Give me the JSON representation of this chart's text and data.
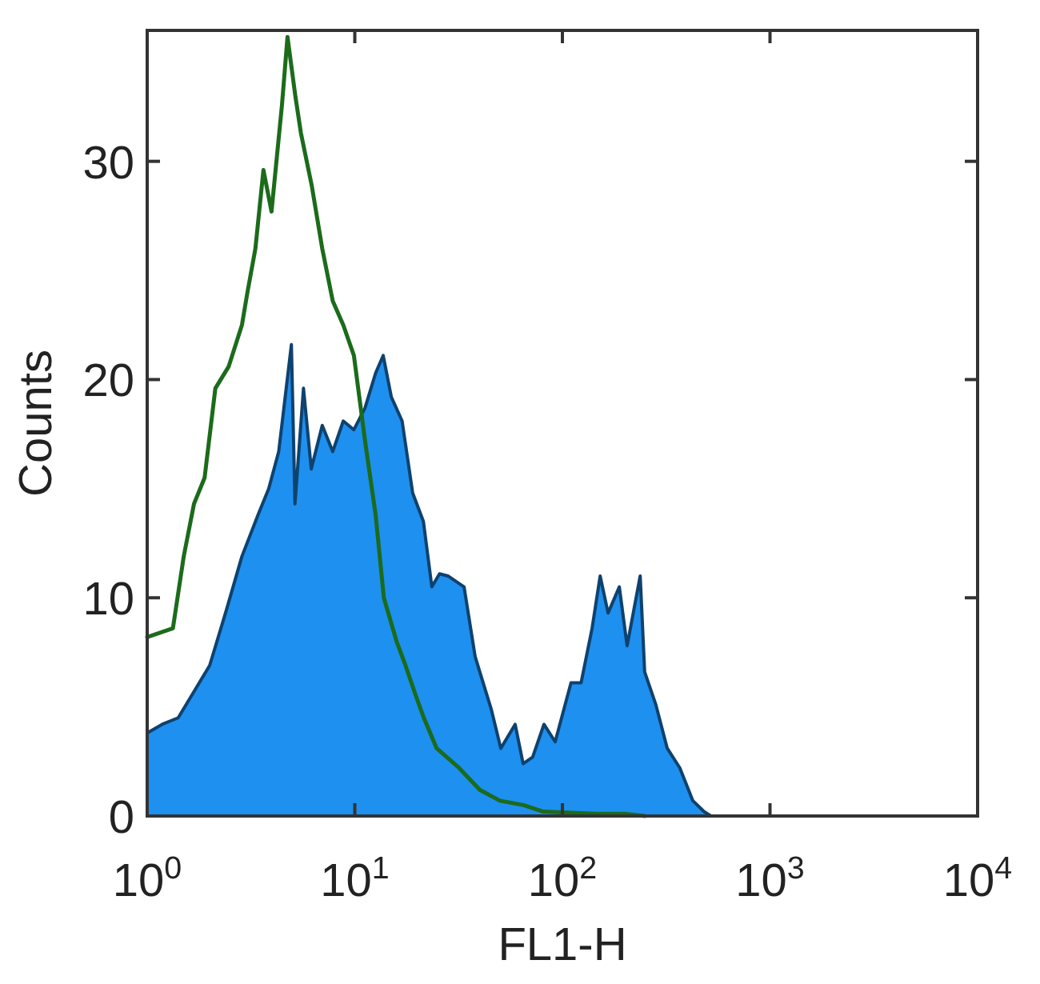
{
  "chart_data": {
    "type": "area",
    "xlabel": "FL1-H",
    "ylabel": "Counts",
    "log": "x",
    "xlim": [
      1,
      10000
    ],
    "xticks": [
      {
        "value": 1,
        "label": "10$^{0}$"
      },
      {
        "value": 10,
        "label": "10$^{1}$"
      },
      {
        "value": 100,
        "label": "10$^{2}$"
      },
      {
        "value": 1000,
        "label": "10$^{3}$"
      },
      {
        "value": 10000,
        "label": "10$^{4}$"
      }
    ],
    "ylim": [
      0,
      36
    ],
    "yticks": [
      0,
      10,
      20,
      30
    ],
    "series": [
      {
        "color": "#1e90f0",
        "x": [
          1,
          1.18,
          1.41,
          1.68,
          2.0,
          2.4,
          2.86,
          3.42,
          3.85,
          4.3,
          4.95,
          5.15,
          5.66,
          6.17,
          6.97,
          7.83,
          8.8,
          9.9,
          11.2,
          12.6,
          13.7,
          15,
          16.9,
          19,
          21.4,
          23.5,
          25.6,
          28.1,
          33.6,
          38,
          45.4,
          50.5,
          59.2,
          64.7,
          71.9,
          81.5,
          92.3,
          110,
          123,
          139,
          152,
          166,
          188,
          205,
          237,
          249,
          282,
          320,
          368,
          425,
          481,
          520
        ],
        "values": [
          3.8,
          4.2,
          4.5,
          5.7,
          6.9,
          9.4,
          11.9,
          13.8,
          15,
          16.7,
          21.6,
          14.3,
          19.6,
          15.9,
          17.9,
          16.7,
          18.1,
          17.7,
          18.7,
          20.3,
          21.1,
          19.2,
          18.1,
          14.8,
          13.5,
          10.5,
          11.1,
          11,
          10.5,
          7.3,
          4.9,
          3.1,
          4.2,
          2.4,
          2.7,
          4.2,
          3.4,
          6.1,
          6.1,
          8.6,
          11,
          9.3,
          10.5,
          7.8,
          11,
          6.6,
          5.1,
          3.1,
          2.2,
          0.7,
          0.2,
          0
        ]
      },
      {
        "type": "line",
        "color": "#1b6b1b",
        "x": [
          1,
          1.33,
          1.5,
          1.68,
          1.89,
          2.13,
          2.47,
          2.86,
          3.04,
          3.32,
          3.63,
          3.97,
          4.46,
          4.74,
          5.17,
          5.5,
          6.2,
          6.97,
          7.83,
          8.8,
          9.9,
          11.2,
          12.6,
          13.8,
          15.9,
          17.4,
          19.7,
          21.5,
          24.8,
          31.8,
          40,
          50,
          65,
          81,
          146,
          200,
          250
        ],
        "values": [
          8.2,
          8.6,
          11.9,
          14.3,
          15.5,
          19.6,
          20.6,
          22.5,
          24,
          26,
          29.6,
          27.7,
          32.6,
          35.7,
          33,
          31.3,
          28.9,
          26,
          23.6,
          22.5,
          21.1,
          17.2,
          13.8,
          10,
          8,
          7,
          5.5,
          4.5,
          3.1,
          2.2,
          1.2,
          0.7,
          0.5,
          0.2,
          0.1,
          0.1,
          0
        ]
      }
    ]
  }
}
